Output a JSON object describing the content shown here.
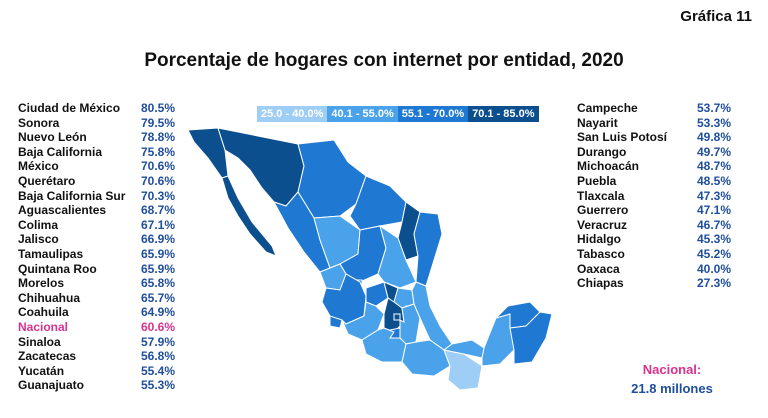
{
  "page_label": "Gráfica 11",
  "title": "Porcentaje de hogares con internet por entidad, 2020",
  "legend": [
    {
      "label": "25.0 - 40.0%",
      "color": "#9ecdf5"
    },
    {
      "label": "40.1 - 55.0%",
      "color": "#4aa3ea"
    },
    {
      "label": "55.1 - 70.0%",
      "color": "#1f78d1"
    },
    {
      "label": "70.1 - 85.0%",
      "color": "#0c4f8f"
    }
  ],
  "left_list": [
    {
      "name": "Ciudad de México",
      "value": "80.5%"
    },
    {
      "name": "Sonora",
      "value": "79.5%"
    },
    {
      "name": "Nuevo León",
      "value": "78.8%"
    },
    {
      "name": "Baja California",
      "value": "75.8%"
    },
    {
      "name": "México",
      "value": "70.6%"
    },
    {
      "name": "Querétaro",
      "value": "70.6%"
    },
    {
      "name": "Baja California Sur",
      "value": "70.3%"
    },
    {
      "name": "Aguascalientes",
      "value": "68.7%"
    },
    {
      "name": "Colima",
      "value": "67.1%"
    },
    {
      "name": "Jalisco",
      "value": "66.9%"
    },
    {
      "name": "Tamaulipas",
      "value": "65.9%"
    },
    {
      "name": "Quintana Roo",
      "value": "65.9%"
    },
    {
      "name": "Morelos",
      "value": "65.8%"
    },
    {
      "name": "Chihuahua",
      "value": "65.7%"
    },
    {
      "name": "Coahuila",
      "value": "64.9%"
    },
    {
      "name": "Nacional",
      "value": "60.6%",
      "highlight": true
    },
    {
      "name": "Sinaloa",
      "value": "57.9%"
    },
    {
      "name": "Zacatecas",
      "value": "56.8%"
    },
    {
      "name": "Yucatán",
      "value": "55.4%"
    },
    {
      "name": "Guanajuato",
      "value": "55.3%"
    }
  ],
  "right_list": [
    {
      "name": "Campeche",
      "value": "53.7%"
    },
    {
      "name": "Nayarit",
      "value": "53.3%"
    },
    {
      "name": "San Luis Potosí",
      "value": "49.8%"
    },
    {
      "name": "Durango",
      "value": "49.7%"
    },
    {
      "name": "Michoacán",
      "value": "48.7%"
    },
    {
      "name": "Puebla",
      "value": "48.5%"
    },
    {
      "name": "Tlaxcala",
      "value": "47.3%"
    },
    {
      "name": "Guerrero",
      "value": "47.1%"
    },
    {
      "name": "Veracruz",
      "value": "46.7%"
    },
    {
      "name": "Hidalgo",
      "value": "45.3%"
    },
    {
      "name": "Tabasco",
      "value": "45.2%"
    },
    {
      "name": "Oaxaca",
      "value": "40.0%"
    },
    {
      "name": "Chiapas",
      "value": "27.3%"
    }
  ],
  "national": {
    "label": "Nacional:",
    "value": "21.8 millones"
  }
}
